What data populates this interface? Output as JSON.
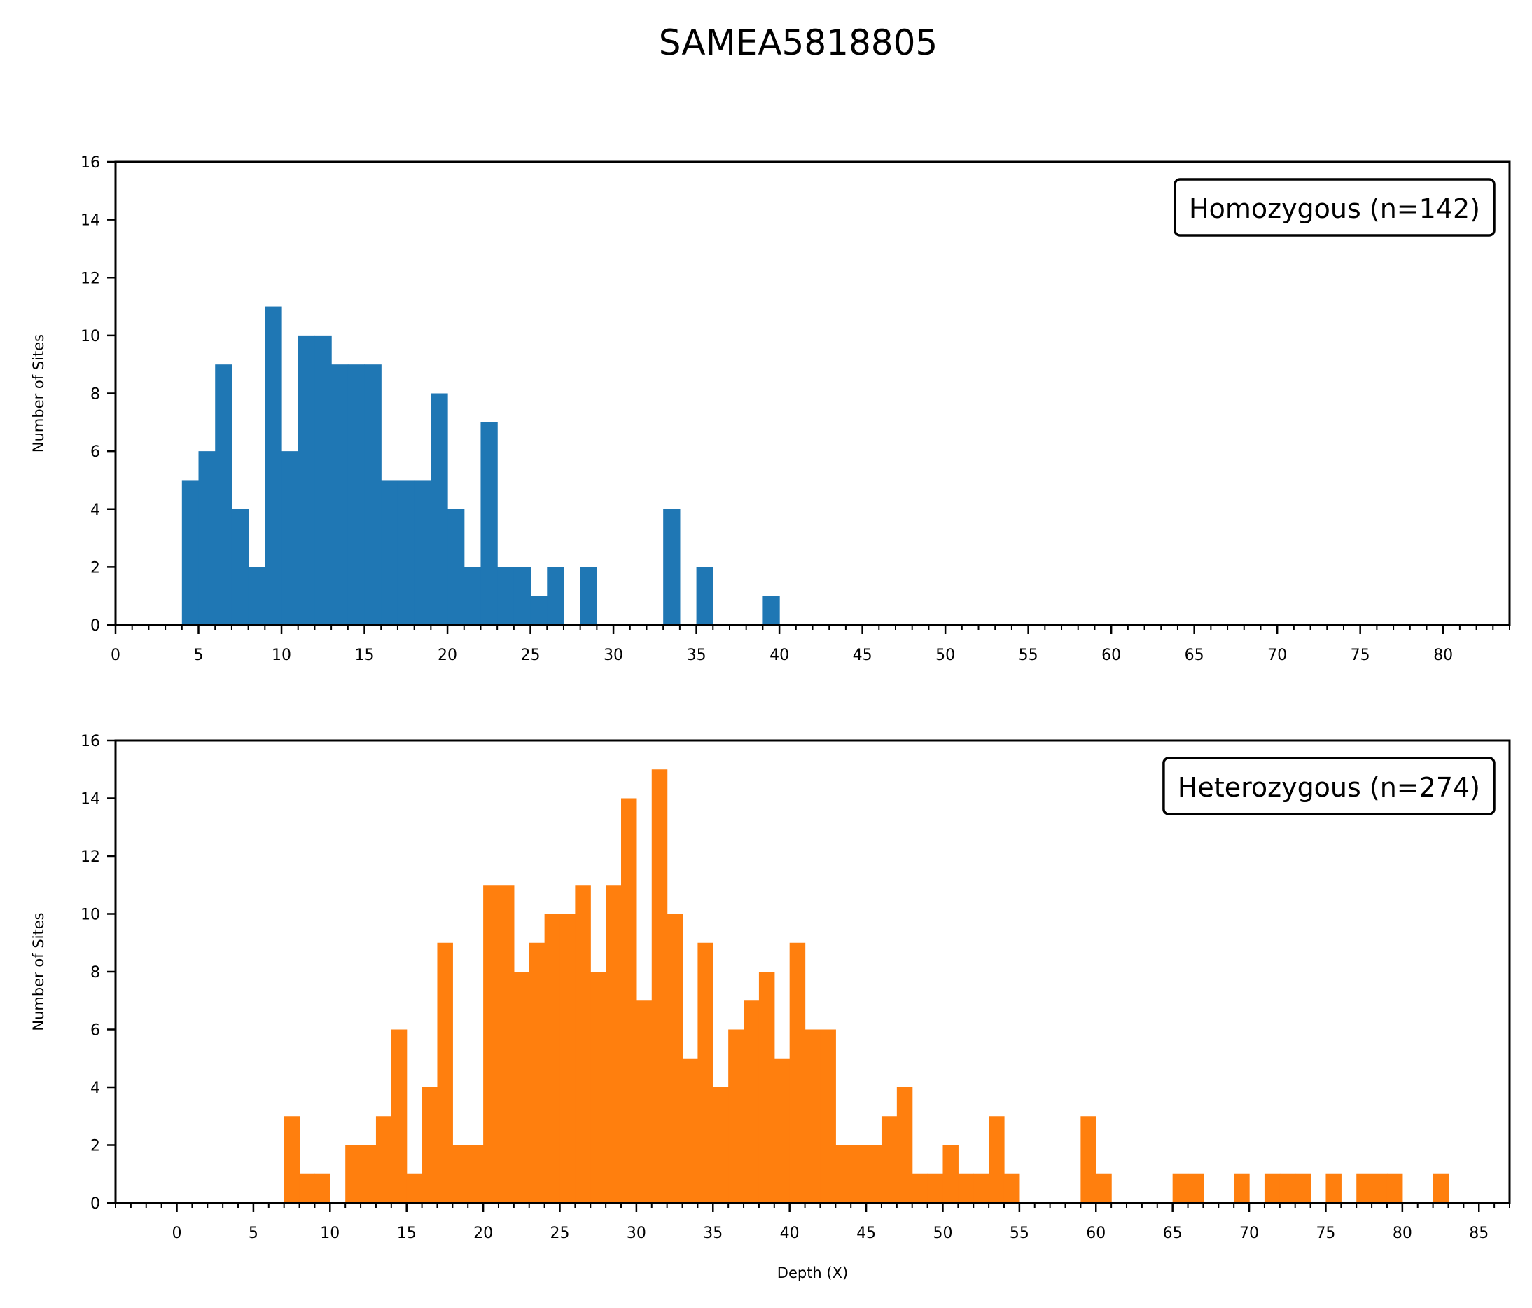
{
  "figure": {
    "suptitle": "SAMEA5818805"
  },
  "chart_data": [
    {
      "type": "bar",
      "title": "",
      "legend": {
        "text": "Homozygous (n=142)",
        "placement": "top-right"
      },
      "color": "#1f77b4",
      "xlabel": "",
      "ylabel": "Number of Sites",
      "xlim": [
        0,
        84
      ],
      "ylim": [
        0,
        16
      ],
      "xticks": [
        0,
        5,
        10,
        15,
        20,
        25,
        30,
        35,
        40,
        45,
        50,
        55,
        60,
        65,
        70,
        75,
        80
      ],
      "yticks": [
        0,
        2,
        4,
        6,
        8,
        10,
        12,
        14,
        16
      ],
      "bin_width": 1,
      "bins": [
        [
          4,
          5
        ],
        [
          5,
          6
        ],
        [
          6,
          9
        ],
        [
          7,
          4
        ],
        [
          8,
          2
        ],
        [
          9,
          11
        ],
        [
          10,
          6
        ],
        [
          11,
          10
        ],
        [
          12,
          10
        ],
        [
          13,
          9
        ],
        [
          14,
          9
        ],
        [
          15,
          9
        ],
        [
          16,
          5
        ],
        [
          17,
          5
        ],
        [
          18,
          5
        ],
        [
          19,
          8
        ],
        [
          20,
          4
        ],
        [
          21,
          2
        ],
        [
          22,
          7
        ],
        [
          23,
          2
        ],
        [
          24,
          2
        ],
        [
          25,
          1
        ],
        [
          26,
          2
        ],
        [
          28,
          2
        ],
        [
          33,
          4
        ],
        [
          35,
          2
        ],
        [
          39,
          1
        ]
      ]
    },
    {
      "type": "bar",
      "title": "",
      "legend": {
        "text": "Heterozygous (n=274)",
        "placement": "top-right"
      },
      "color": "#ff7f0e",
      "xlabel": "Depth (X)",
      "ylabel": "Number of Sites",
      "xlim": [
        -4,
        87
      ],
      "ylim": [
        0,
        16
      ],
      "xticks": [
        0,
        5,
        10,
        15,
        20,
        25,
        30,
        35,
        40,
        45,
        50,
        55,
        60,
        65,
        70,
        75,
        80,
        85
      ],
      "yticks": [
        0,
        2,
        4,
        6,
        8,
        10,
        12,
        14,
        16
      ],
      "bin_width": 1,
      "bins": [
        [
          7,
          3
        ],
        [
          8,
          1
        ],
        [
          9,
          1
        ],
        [
          11,
          2
        ],
        [
          12,
          2
        ],
        [
          13,
          3
        ],
        [
          14,
          6
        ],
        [
          15,
          1
        ],
        [
          16,
          4
        ],
        [
          17,
          9
        ],
        [
          18,
          2
        ],
        [
          19,
          2
        ],
        [
          20,
          11
        ],
        [
          21,
          11
        ],
        [
          22,
          8
        ],
        [
          23,
          9
        ],
        [
          24,
          10
        ],
        [
          25,
          10
        ],
        [
          26,
          11
        ],
        [
          27,
          8
        ],
        [
          28,
          11
        ],
        [
          29,
          14
        ],
        [
          30,
          7
        ],
        [
          31,
          15
        ],
        [
          32,
          10
        ],
        [
          33,
          5
        ],
        [
          34,
          9
        ],
        [
          35,
          4
        ],
        [
          36,
          6
        ],
        [
          37,
          7
        ],
        [
          38,
          8
        ],
        [
          39,
          5
        ],
        [
          40,
          9
        ],
        [
          41,
          6
        ],
        [
          42,
          6
        ],
        [
          43,
          2
        ],
        [
          44,
          2
        ],
        [
          45,
          2
        ],
        [
          46,
          3
        ],
        [
          47,
          4
        ],
        [
          48,
          1
        ],
        [
          49,
          1
        ],
        [
          50,
          2
        ],
        [
          51,
          1
        ],
        [
          52,
          1
        ],
        [
          53,
          3
        ],
        [
          54,
          1
        ],
        [
          59,
          3
        ],
        [
          60,
          1
        ],
        [
          65,
          1
        ],
        [
          66,
          1
        ],
        [
          69,
          1
        ],
        [
          71,
          1
        ],
        [
          72,
          1
        ],
        [
          73,
          1
        ],
        [
          75,
          1
        ],
        [
          77,
          1
        ],
        [
          78,
          1
        ],
        [
          79,
          1
        ],
        [
          82,
          1
        ]
      ]
    }
  ]
}
